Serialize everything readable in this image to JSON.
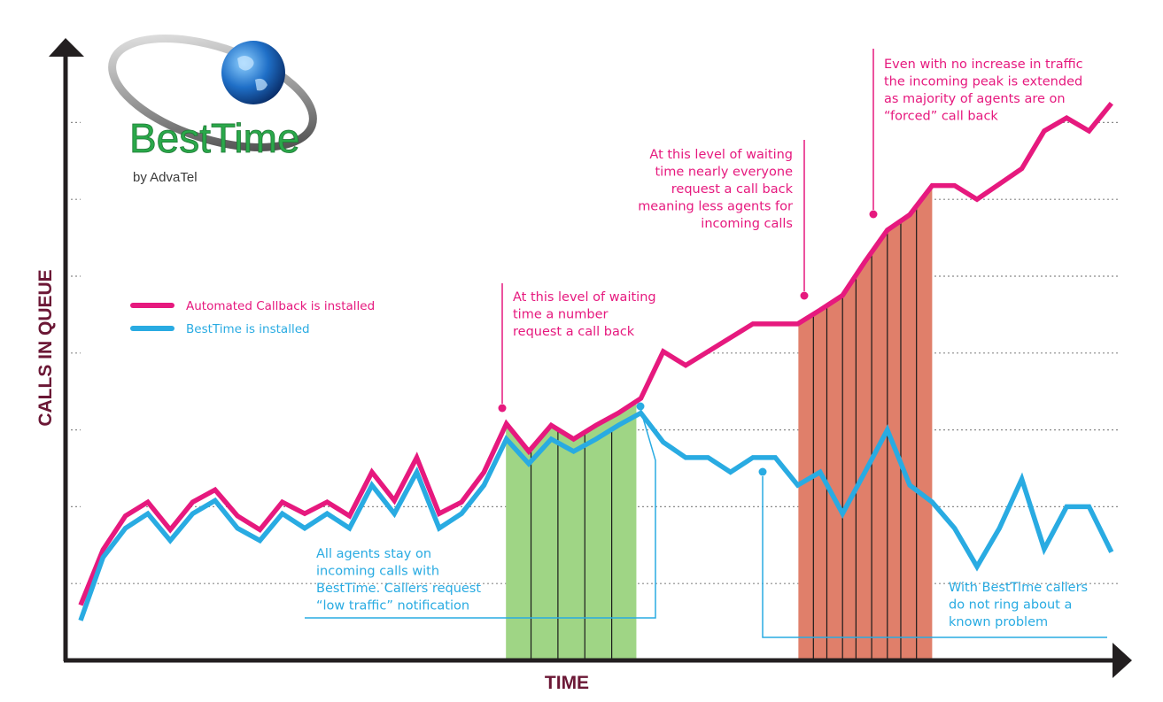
{
  "logo": {
    "name": "BestTime",
    "byline": "by AdvaTel"
  },
  "colors": {
    "callback": "#e6197e",
    "besttime": "#29abe2",
    "axis": "#231f20",
    "axis_label": "#6b1735",
    "green_band": "#9fd585",
    "red_band": "#e07f6a",
    "grid": "#8a8a8a"
  },
  "chart_data": {
    "type": "line",
    "xlabel": "TIME",
    "ylabel": "CALLS IN QUEUE",
    "grid": true,
    "legend_position": "left",
    "series": [
      {
        "name": "Automated Callback is installed",
        "color": "#e6197e",
        "points": [
          [
            0,
            0.72
          ],
          [
            1,
            1.44
          ],
          [
            2,
            1.88
          ],
          [
            3,
            2.06
          ],
          [
            4,
            1.7
          ],
          [
            5,
            2.06
          ],
          [
            6,
            2.22
          ],
          [
            7,
            1.88
          ],
          [
            8,
            1.7
          ],
          [
            9,
            2.06
          ],
          [
            10,
            1.91
          ],
          [
            11,
            2.06
          ],
          [
            12,
            1.88
          ],
          [
            13,
            2.45
          ],
          [
            14,
            2.08
          ],
          [
            15,
            2.64
          ],
          [
            16,
            1.91
          ],
          [
            17,
            2.06
          ],
          [
            18,
            2.45
          ],
          [
            19,
            3.08
          ],
          [
            20,
            2.72
          ],
          [
            21,
            3.06
          ],
          [
            22,
            2.88
          ],
          [
            23,
            3.06
          ],
          [
            24,
            3.22
          ],
          [
            25,
            3.41
          ],
          [
            26,
            4.02
          ],
          [
            27,
            3.84
          ],
          [
            28,
            4.02
          ],
          [
            29,
            4.2
          ],
          [
            30,
            4.38
          ],
          [
            31,
            4.38
          ],
          [
            32,
            4.38
          ],
          [
            33,
            4.56
          ],
          [
            34,
            4.75
          ],
          [
            35,
            5.19
          ],
          [
            36,
            5.6
          ],
          [
            37,
            5.8
          ],
          [
            38,
            6.18
          ],
          [
            39,
            6.18
          ],
          [
            40,
            6.0
          ],
          [
            41,
            6.2
          ],
          [
            42,
            6.4
          ],
          [
            43,
            6.89
          ],
          [
            44,
            7.06
          ],
          [
            45,
            6.89
          ],
          [
            46,
            7.25
          ]
        ]
      },
      {
        "name": "BestTime is installed",
        "color": "#29abe2",
        "points": [
          [
            0,
            0.52
          ],
          [
            1,
            1.34
          ],
          [
            2,
            1.72
          ],
          [
            3,
            1.91
          ],
          [
            4,
            1.56
          ],
          [
            5,
            1.91
          ],
          [
            6,
            2.08
          ],
          [
            7,
            1.72
          ],
          [
            8,
            1.56
          ],
          [
            9,
            1.91
          ],
          [
            10,
            1.72
          ],
          [
            11,
            1.91
          ],
          [
            12,
            1.72
          ],
          [
            13,
            2.28
          ],
          [
            14,
            1.91
          ],
          [
            15,
            2.45
          ],
          [
            16,
            1.72
          ],
          [
            17,
            1.91
          ],
          [
            18,
            2.28
          ],
          [
            19,
            2.88
          ],
          [
            20,
            2.56
          ],
          [
            21,
            2.88
          ],
          [
            22,
            2.72
          ],
          [
            23,
            2.88
          ],
          [
            24,
            3.06
          ],
          [
            25,
            3.22
          ],
          [
            26,
            2.84
          ],
          [
            27,
            2.64
          ],
          [
            28,
            2.64
          ],
          [
            29,
            2.45
          ],
          [
            30,
            2.64
          ],
          [
            31,
            2.64
          ],
          [
            32,
            2.28
          ],
          [
            33,
            2.45
          ],
          [
            34,
            1.91
          ],
          [
            35,
            2.45
          ],
          [
            36,
            3.0
          ],
          [
            37,
            2.28
          ],
          [
            38,
            2.06
          ],
          [
            39,
            1.72
          ],
          [
            40,
            1.22
          ],
          [
            41,
            1.72
          ],
          [
            42,
            2.36
          ],
          [
            43,
            1.45
          ],
          [
            44,
            2.0
          ],
          [
            45,
            2.0
          ],
          [
            46,
            1.41
          ]
        ]
      }
    ],
    "highlights": [
      {
        "from": 18.98,
        "to": 24.8,
        "color": "#9fd585",
        "dividers": [
          20.1,
          21.3,
          22.5,
          23.7
        ]
      },
      {
        "from": 32.03,
        "to": 38.0,
        "color": "#e07f6a",
        "dividers": [
          32.7,
          33.3,
          34.0,
          34.6,
          35.3,
          36.0,
          36.6,
          37.3
        ]
      }
    ]
  },
  "annotations": [
    {
      "id": "ann1",
      "lines": [
        "At this level of waiting",
        "time a number",
        "request a call back"
      ],
      "color": "#e6197e",
      "align": "start"
    },
    {
      "id": "ann2",
      "lines": [
        "At this level of waiting",
        "time nearly everyone",
        "request a call back",
        "meaning less agents for",
        "incoming calls"
      ],
      "color": "#e6197e",
      "align": "end"
    },
    {
      "id": "ann3",
      "lines": [
        "Even with no increase in traffic",
        "the incoming peak is extended",
        "as majority of agents are on",
        "“forced” call back"
      ],
      "color": "#e6197e",
      "align": "start"
    },
    {
      "id": "ann4",
      "lines": [
        "All agents stay on",
        "incoming calls with",
        "BestTime. Callers request",
        "“low traffic” notification"
      ],
      "color": "#29abe2",
      "align": "start"
    },
    {
      "id": "ann5",
      "lines": [
        "With BestTime callers",
        "do not ring about a",
        "known problem"
      ],
      "color": "#29abe2",
      "align": "start"
    }
  ]
}
